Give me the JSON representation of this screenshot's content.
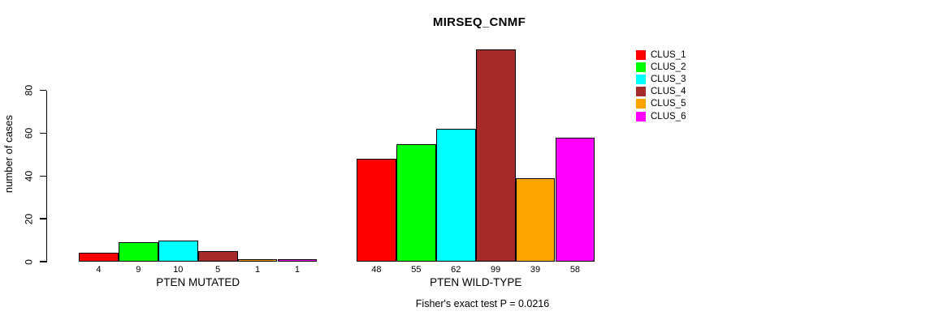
{
  "title": "MIRSEQ_CNMF",
  "footer": "Fisher's exact test P = 0.0216",
  "chart_data": {
    "type": "bar",
    "title": "MIRSEQ_CNMF",
    "xlabel": "",
    "ylabel": "number of cases",
    "ylim": [
      0,
      80
    ],
    "yticks": [
      0,
      20,
      40,
      60,
      80
    ],
    "grid": false,
    "legend_position": "right",
    "categories": [
      "PTEN MUTATED",
      "PTEN WILD-TYPE"
    ],
    "series": [
      {
        "name": "CLUS_1",
        "color": "#FF0000",
        "values": [
          4,
          48
        ]
      },
      {
        "name": "CLUS_2",
        "color": "#00FF00",
        "values": [
          9,
          55
        ]
      },
      {
        "name": "CLUS_3",
        "color": "#00FFFF",
        "values": [
          10,
          62
        ]
      },
      {
        "name": "CLUS_4",
        "color": "#A52A2A",
        "values": [
          5,
          99
        ]
      },
      {
        "name": "CLUS_5",
        "color": "#FFA500",
        "values": [
          1,
          39
        ]
      },
      {
        "name": "CLUS_6",
        "color": "#FF00FF",
        "values": [
          1,
          58
        ]
      }
    ],
    "bar_value_labels": [
      [
        "4",
        "9",
        "10",
        "5",
        "1",
        "1"
      ],
      [
        "48",
        "55",
        "62",
        "99",
        "39",
        "58"
      ]
    ],
    "annotation": "Fisher's exact test P = 0.0216"
  }
}
